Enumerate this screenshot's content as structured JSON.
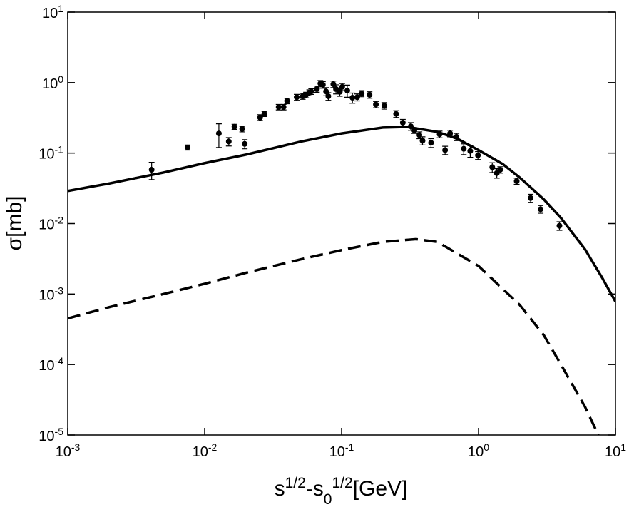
{
  "chart_data": {
    "type": "line",
    "x_label": "s^{1/2}-s_{0}^{1/2}[GeV]",
    "y_label": "σ[mb]",
    "log_x": true,
    "log_y": true,
    "xlim": [
      0.001,
      10
    ],
    "ylim": [
      1e-05,
      10
    ],
    "xticks": [
      {
        "value": 0.001,
        "label": "10^{-3}"
      },
      {
        "value": 0.01,
        "label": "10^{-2}"
      },
      {
        "value": 0.1,
        "label": "10^{-1}"
      },
      {
        "value": 1,
        "label": "10^{0}"
      },
      {
        "value": 10,
        "label": "10^{1}"
      }
    ],
    "yticks": [
      {
        "value": 1e-05,
        "label": "10^{-5}"
      },
      {
        "value": 0.0001,
        "label": "10^{-4}"
      },
      {
        "value": 0.001,
        "label": "10^{-3}"
      },
      {
        "value": 0.01,
        "label": "10^{-2}"
      },
      {
        "value": 0.1,
        "label": "10^{-1}"
      },
      {
        "value": 1,
        "label": "10^{0}"
      },
      {
        "value": 10,
        "label": "10^{1}"
      }
    ],
    "series": [
      {
        "color": "#000000",
        "dash": false,
        "x": [
          0.001,
          0.002,
          0.005,
          0.01,
          0.02,
          0.05,
          0.1,
          0.2,
          0.3,
          0.5,
          0.7,
          1,
          1.5,
          2,
          3,
          4,
          6,
          8,
          10
        ],
        "values": [
          0.029,
          0.037,
          0.053,
          0.072,
          0.095,
          0.145,
          0.19,
          0.23,
          0.235,
          0.2,
          0.16,
          0.11,
          0.07,
          0.045,
          0.022,
          0.012,
          0.0043,
          0.0017,
          0.00078
        ]
      },
      {
        "color": "#000000",
        "dash": true,
        "x": [
          0.001,
          0.002,
          0.005,
          0.01,
          0.02,
          0.05,
          0.1,
          0.2,
          0.35,
          0.5,
          1,
          2,
          3,
          4,
          6,
          7.5
        ],
        "values": [
          0.00045,
          0.00065,
          0.001,
          0.0014,
          0.002,
          0.0031,
          0.0042,
          0.0055,
          0.006,
          0.0055,
          0.0025,
          0.0007,
          0.00026,
          0.0001,
          2.5e-05,
          1e-05
        ]
      }
    ],
    "points": {
      "color": "#000000",
      "x": [
        0.0041,
        0.0075,
        0.0127,
        0.015,
        0.0165,
        0.0188,
        0.0196,
        0.0254,
        0.0273,
        0.0347,
        0.0377,
        0.04,
        0.047,
        0.052,
        0.055,
        0.058,
        0.06,
        0.066,
        0.07,
        0.073,
        0.077,
        0.08,
        0.087,
        0.091,
        0.097,
        0.101,
        0.11,
        0.12,
        0.13,
        0.14,
        0.16,
        0.178,
        0.205,
        0.25,
        0.28,
        0.32,
        0.34,
        0.37,
        0.39,
        0.45,
        0.52,
        0.57,
        0.62,
        0.69,
        0.78,
        0.87,
        0.99,
        1.26,
        1.36,
        1.44,
        1.9,
        2.4,
        2.84,
        3.9
      ],
      "values": [
        0.058,
        0.12,
        0.19,
        0.146,
        0.236,
        0.22,
        0.135,
        0.32,
        0.36,
        0.45,
        0.45,
        0.55,
        0.62,
        0.64,
        0.67,
        0.72,
        0.75,
        0.81,
        0.97,
        0.93,
        0.75,
        0.64,
        0.95,
        0.81,
        0.74,
        0.87,
        0.77,
        0.61,
        0.62,
        0.7,
        0.67,
        0.49,
        0.47,
        0.36,
        0.27,
        0.24,
        0.21,
        0.18,
        0.15,
        0.14,
        0.185,
        0.11,
        0.19,
        0.17,
        0.115,
        0.107,
        0.093,
        0.063,
        0.052,
        0.058,
        0.04,
        0.023,
        0.016,
        0.0093
      ],
      "errors": [
        0.016,
        0.01,
        0.07,
        0.02,
        0.02,
        0.02,
        0.02,
        0.03,
        0.03,
        0.04,
        0.04,
        0.05,
        0.06,
        0.06,
        0.06,
        0.07,
        0.07,
        0.08,
        0.1,
        0.1,
        0.1,
        0.08,
        0.1,
        0.12,
        0.1,
        0.1,
        0.15,
        0.1,
        0.07,
        0.07,
        0.07,
        0.05,
        0.05,
        0.04,
        0.03,
        0.03,
        0.02,
        0.02,
        0.02,
        0.02,
        0.02,
        0.015,
        0.02,
        0.02,
        0.02,
        0.02,
        0.012,
        0.01,
        0.008,
        0.006,
        0.004,
        0.003,
        0.002,
        0.0013
      ]
    }
  }
}
